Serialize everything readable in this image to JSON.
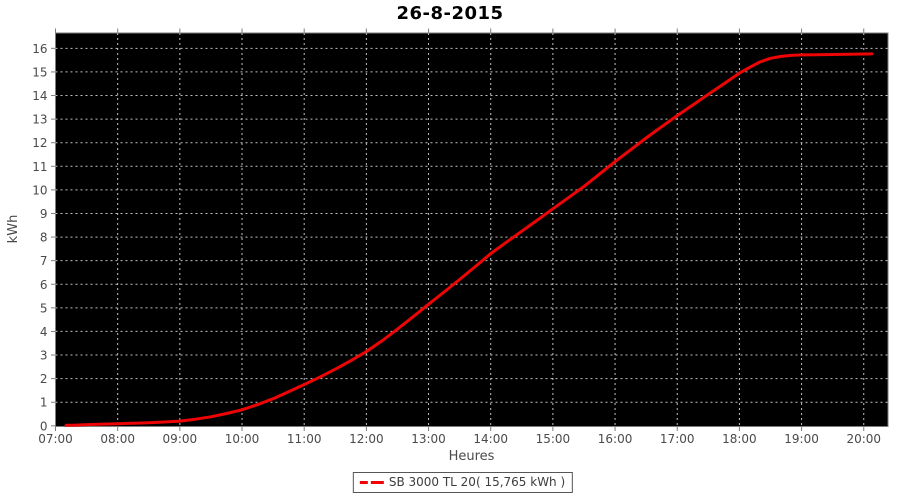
{
  "title": "26-8-2015",
  "chart_data": {
    "type": "line",
    "title": "26-8-2015",
    "xlabel": "Heures",
    "ylabel": "kWh",
    "x_ticks": [
      "07:00",
      "08:00",
      "09:00",
      "10:00",
      "11:00",
      "12:00",
      "13:00",
      "14:00",
      "15:00",
      "16:00",
      "17:00",
      "18:00",
      "19:00",
      "20:00"
    ],
    "x_tick_hours": [
      7,
      8,
      9,
      10,
      11,
      12,
      13,
      14,
      15,
      16,
      17,
      18,
      19,
      20
    ],
    "y_ticks": [
      0,
      1,
      2,
      3,
      4,
      5,
      6,
      7,
      8,
      9,
      10,
      11,
      12,
      13,
      14,
      15,
      16
    ],
    "xlim": [
      7,
      20.39
    ],
    "ylim": [
      0,
      16.68
    ],
    "grid": true,
    "legend_position": "bottom",
    "plot_background": "#000000",
    "grid_color": "#c2c2c2",
    "axis_color": "#7d7d7d",
    "tick_label_color": "#4a4a4a",
    "series": [
      {
        "name": "SB 3000 TL 20( 15,765 kWh )",
        "device": "SB 3000 TL 20",
        "total_kwh_label": "15,765",
        "color": "#ee0404",
        "points": [
          [
            7.17,
            0.02
          ],
          [
            7.33,
            0.03
          ],
          [
            7.5,
            0.05
          ],
          [
            7.75,
            0.07
          ],
          [
            8.0,
            0.09
          ],
          [
            8.25,
            0.11
          ],
          [
            8.5,
            0.13
          ],
          [
            8.75,
            0.16
          ],
          [
            9.0,
            0.2
          ],
          [
            9.25,
            0.28
          ],
          [
            9.5,
            0.38
          ],
          [
            9.75,
            0.52
          ],
          [
            10.0,
            0.68
          ],
          [
            10.25,
            0.9
          ],
          [
            10.5,
            1.15
          ],
          [
            10.75,
            1.44
          ],
          [
            11.0,
            1.75
          ],
          [
            11.25,
            2.06
          ],
          [
            11.5,
            2.4
          ],
          [
            11.75,
            2.76
          ],
          [
            12.0,
            3.15
          ],
          [
            12.25,
            3.6
          ],
          [
            12.5,
            4.1
          ],
          [
            12.75,
            4.62
          ],
          [
            13.0,
            5.15
          ],
          [
            13.25,
            5.67
          ],
          [
            13.5,
            6.2
          ],
          [
            13.75,
            6.75
          ],
          [
            14.0,
            7.3
          ],
          [
            14.25,
            7.78
          ],
          [
            14.5,
            8.25
          ],
          [
            14.75,
            8.72
          ],
          [
            15.0,
            9.2
          ],
          [
            15.25,
            9.67
          ],
          [
            15.5,
            10.15
          ],
          [
            15.75,
            10.67
          ],
          [
            16.0,
            11.2
          ],
          [
            16.25,
            11.7
          ],
          [
            16.5,
            12.2
          ],
          [
            16.75,
            12.68
          ],
          [
            17.0,
            13.15
          ],
          [
            17.25,
            13.6
          ],
          [
            17.5,
            14.05
          ],
          [
            17.75,
            14.5
          ],
          [
            18.0,
            14.95
          ],
          [
            18.17,
            15.2
          ],
          [
            18.33,
            15.42
          ],
          [
            18.5,
            15.58
          ],
          [
            18.67,
            15.66
          ],
          [
            18.83,
            15.7
          ],
          [
            19.0,
            15.72
          ],
          [
            19.25,
            15.73
          ],
          [
            19.5,
            15.74
          ],
          [
            19.75,
            15.75
          ],
          [
            20.0,
            15.76
          ],
          [
            20.13,
            15.765
          ]
        ]
      }
    ]
  }
}
